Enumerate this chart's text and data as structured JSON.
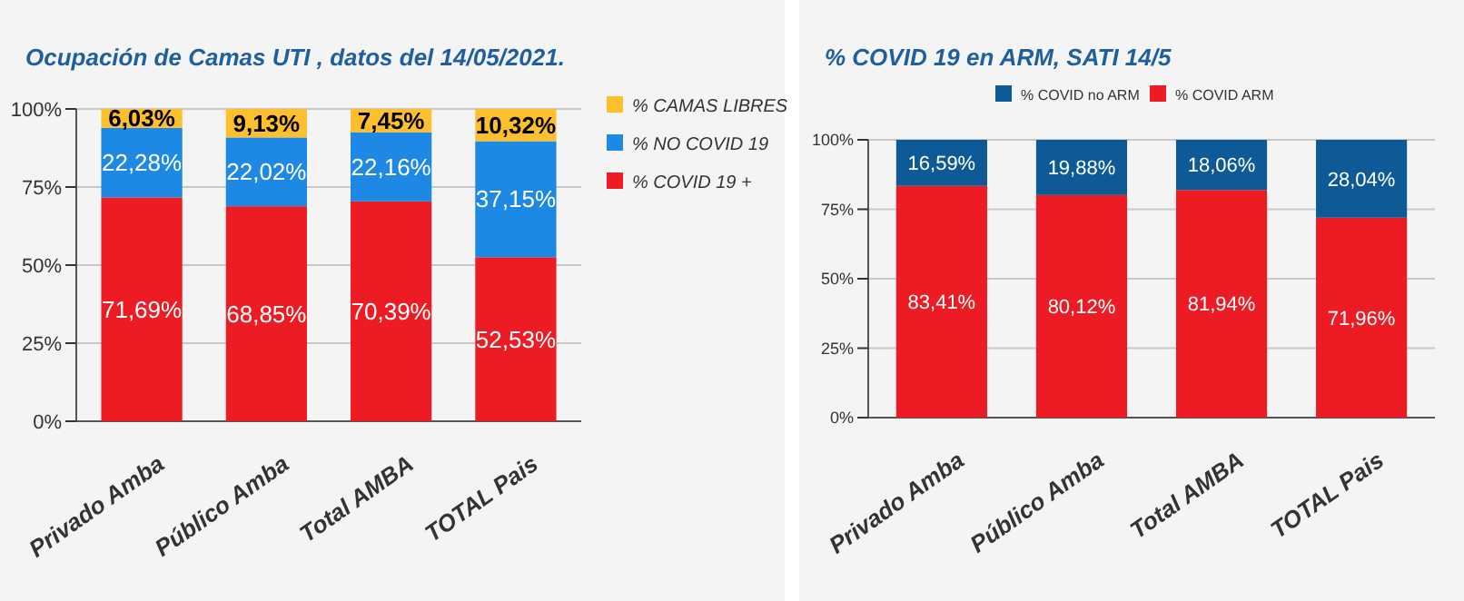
{
  "chart_data": [
    {
      "type": "bar",
      "title": "Ocupación de Camas UTI , datos del 14/05/2021.",
      "categories": [
        "Privado Amba",
        "Público Amba",
        "Total AMBA",
        "TOTAL Pais"
      ],
      "stacked": true,
      "ylim": [
        0,
        100
      ],
      "yticks": [
        {
          "value": 0,
          "label": "0%"
        },
        {
          "value": 25,
          "label": "25%"
        },
        {
          "value": 50,
          "label": "50%"
        },
        {
          "value": 75,
          "label": "75%"
        },
        {
          "value": 100,
          "label": "100%"
        }
      ],
      "grid": "y",
      "legend": "right",
      "series": [
        {
          "name": "% COVID 19 +",
          "color": "#ed1c24",
          "values": [
            71.69,
            68.85,
            70.39,
            52.53
          ],
          "value_labels": [
            "71,69%",
            "68,85%",
            "70,39%",
            "52,53%"
          ]
        },
        {
          "name": "% NO COVID 19",
          "color": "#1e88e5",
          "values": [
            22.28,
            22.02,
            22.16,
            37.15
          ],
          "value_labels": [
            "22,28%",
            "22,02%",
            "22,16%",
            "37,15%"
          ]
        },
        {
          "name": "% CAMAS LIBRES",
          "color": "#fdbf2d",
          "values": [
            6.03,
            9.13,
            7.45,
            10.32
          ],
          "value_labels": [
            "6,03%",
            "9,13%",
            "7,45%",
            "10,32%"
          ]
        }
      ]
    },
    {
      "type": "bar",
      "title": "% COVID 19 en ARM, SATI 14/5",
      "categories": [
        "Privado Amba",
        "Público Amba",
        "Total AMBA",
        "TOTAL Pais"
      ],
      "stacked": true,
      "ylim": [
        0,
        100
      ],
      "yticks": [
        {
          "value": 0,
          "label": "0%"
        },
        {
          "value": 25,
          "label": "25%"
        },
        {
          "value": 50,
          "label": "50%"
        },
        {
          "value": 75,
          "label": "75%"
        },
        {
          "value": 100,
          "label": "100%"
        }
      ],
      "grid": "y",
      "legend": "top",
      "series": [
        {
          "name": "% COVID ARM",
          "color": "#ed1c24",
          "values": [
            83.41,
            80.12,
            81.94,
            71.96
          ],
          "value_labels": [
            "83,41%",
            "80,12%",
            "81,94%",
            "71,96%"
          ]
        },
        {
          "name": "% COVID no ARM",
          "color": "#0d5a96",
          "values": [
            16.59,
            19.88,
            18.06,
            28.04
          ],
          "value_labels": [
            "16,59%",
            "19,88%",
            "18,06%",
            "28,04%"
          ]
        }
      ]
    }
  ]
}
